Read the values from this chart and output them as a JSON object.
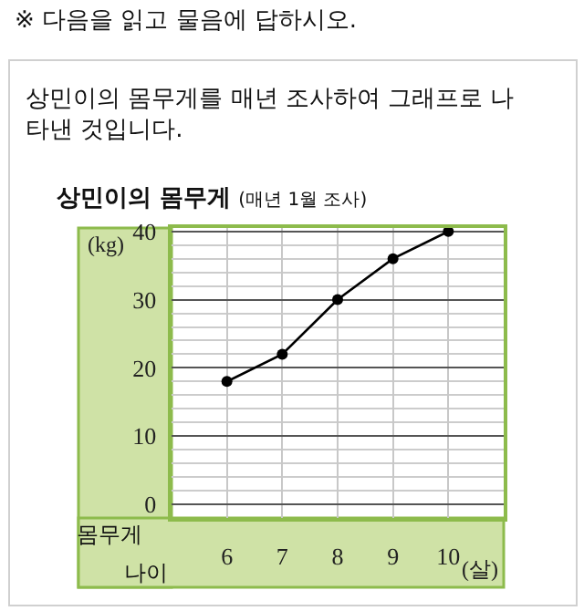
{
  "chart_data": {
    "type": "line",
    "title": "상민이의 몸무게",
    "subtitle": "(매년 1월 조사)",
    "ylabel": "(kg)",
    "xlabel": "(살)",
    "annotations": [
      "※ 다음을 읽고 물음에 답하시오.",
      "상민이의 몸무게를 매년 조사하여 그래프로 나타낸 것입니다.",
      "몸무게",
      "나이"
    ],
    "x": [
      6,
      7,
      8,
      9,
      10
    ],
    "series": [
      {
        "color": "#000000",
        "values": [
          18,
          22,
          30,
          36,
          40
        ]
      }
    ],
    "xlim": [
      5,
      11
    ],
    "xticks": [
      6,
      7,
      8,
      9,
      10
    ],
    "ylim": [
      -2,
      40.5
    ],
    "yticks": [
      0,
      10,
      20,
      30,
      40,
      {
        "value": 2,
        "label": null
      },
      {
        "value": 4,
        "label": null
      },
      {
        "value": 6,
        "label": null
      },
      {
        "value": 8,
        "label": null
      },
      {
        "value": 12,
        "label": null
      },
      {
        "value": 14,
        "label": null
      },
      {
        "value": 16,
        "label": null
      },
      {
        "value": 18,
        "label": null
      },
      {
        "value": 22,
        "label": null
      },
      {
        "value": 24,
        "label": null
      },
      {
        "value": 26,
        "label": null
      },
      {
        "value": 28,
        "label": null
      },
      {
        "value": 32,
        "label": null
      },
      {
        "value": 34,
        "label": null
      },
      {
        "value": 36,
        "label": null
      },
      {
        "value": 38,
        "label": null
      }
    ],
    "grid": true,
    "legend": false,
    "marker": "circle",
    "line_style": "solid"
  }
}
